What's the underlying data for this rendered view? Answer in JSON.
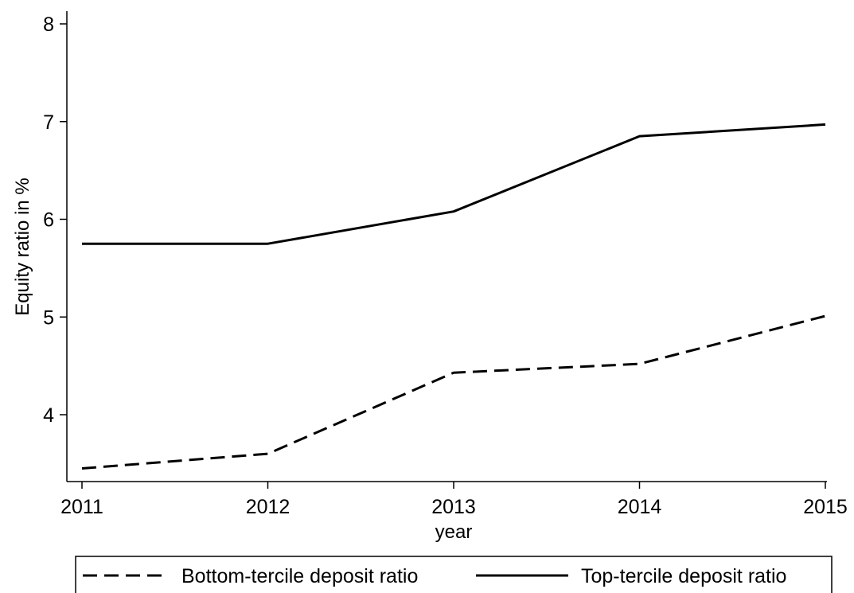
{
  "chart_data": {
    "type": "line",
    "title": "",
    "xlabel": "year",
    "ylabel": "Equity ratio in %",
    "x": [
      2011,
      2012,
      2013,
      2014,
      2015
    ],
    "x_ticks": [
      "2011",
      "2012",
      "2013",
      "2014",
      "2015"
    ],
    "y_ticks": [
      "4",
      "5",
      "6",
      "7",
      "8"
    ],
    "xlim": [
      2011,
      2015
    ],
    "ylim": [
      3.3,
      8.15
    ],
    "grid": false,
    "legend_position": "bottom",
    "series": [
      {
        "name": "Bottom-tercile deposit ratio",
        "style": "dashed",
        "color": "#000000",
        "values": [
          3.45,
          3.6,
          4.43,
          4.52,
          5.01
        ]
      },
      {
        "name": "Top-tercile deposit ratio",
        "style": "solid",
        "color": "#000000",
        "values": [
          5.75,
          5.75,
          6.08,
          6.85,
          6.97
        ]
      }
    ]
  }
}
